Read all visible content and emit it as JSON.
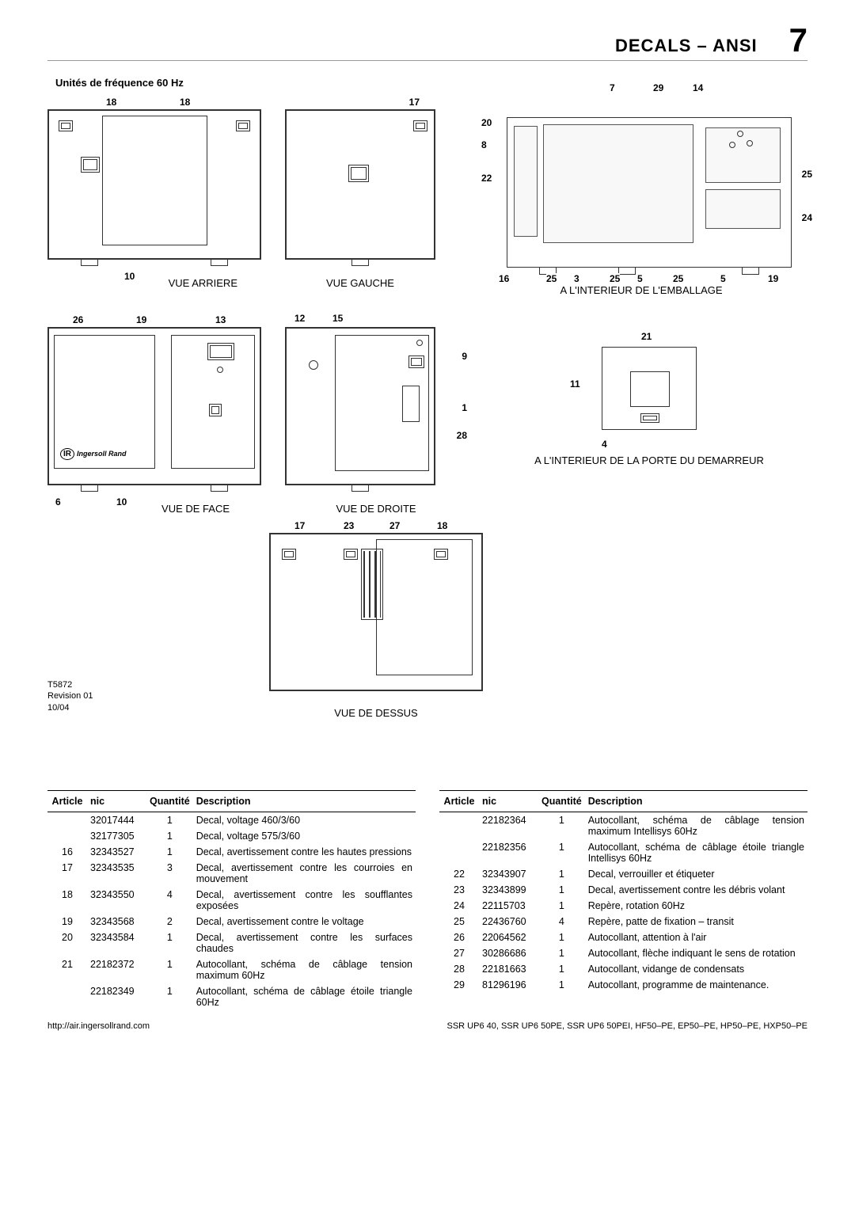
{
  "header": {
    "section_title": "DECALS – ANSI",
    "page_number": "7"
  },
  "subtitle": "Unités de fréquence 60 Hz",
  "diagrams": {
    "rear": {
      "caption": "VUE ARRIERE",
      "callouts": [
        "18",
        "18",
        "10"
      ]
    },
    "left": {
      "caption": "VUE GAUCHE",
      "callouts": [
        "17"
      ]
    },
    "inside_pack": {
      "caption": "A L'INTERIEUR DE L'EMBALLAGE",
      "callouts": [
        "20",
        "8",
        "22",
        "16",
        "25",
        "3",
        "25",
        "5",
        "25",
        "5",
        "19",
        "7",
        "29",
        "14",
        "25",
        "24"
      ]
    },
    "front": {
      "caption": "VUE DE FACE",
      "callouts": [
        "26",
        "19",
        "13",
        "6",
        "10"
      ]
    },
    "right": {
      "caption": "VUE DE DROITE",
      "callouts": [
        "12",
        "15",
        "9",
        "1",
        "28"
      ]
    },
    "starter": {
      "caption": "A L'INTERIEUR DE LA PORTE DU DEMARREUR",
      "callouts": [
        "21",
        "11",
        "4"
      ]
    },
    "top": {
      "caption": "VUE DE DESSUS",
      "callouts": [
        "17",
        "23",
        "27",
        "18"
      ]
    }
  },
  "revision": {
    "code": "T5872",
    "rev": "Revision 01",
    "date": "10/04"
  },
  "logo_text": "Ingersoll Rand",
  "logo_mark": "IR",
  "table": {
    "headers": {
      "article": "Article",
      "nic": "nic",
      "qty": "Quantité",
      "desc": "Description"
    },
    "left_rows": [
      {
        "article": "",
        "nic": "32017444",
        "qty": "1",
        "desc": "Decal, voltage 460/3/60"
      },
      {
        "article": "",
        "nic": "32177305",
        "qty": "1",
        "desc": "Decal, voltage 575/3/60"
      },
      {
        "article": "16",
        "nic": "32343527",
        "qty": "1",
        "desc": "Decal, avertissement contre les hautes pressions"
      },
      {
        "article": "17",
        "nic": "32343535",
        "qty": "3",
        "desc": "Decal, avertissement contre les courroies en mouvement"
      },
      {
        "article": "18",
        "nic": "32343550",
        "qty": "4",
        "desc": "Decal, avertissement contre les soufflantes exposées"
      },
      {
        "article": "19",
        "nic": "32343568",
        "qty": "2",
        "desc": "Decal, avertissement contre le voltage"
      },
      {
        "article": "20",
        "nic": "32343584",
        "qty": "1",
        "desc": "Decal, avertissement contre les surfaces chaudes"
      },
      {
        "article": "21",
        "nic": "22182372",
        "qty": "1",
        "desc": "Autocollant, schéma de câblage tension maximum 60Hz"
      },
      {
        "article": "",
        "nic": "22182349",
        "qty": "1",
        "desc": "Autocollant, schéma de câblage étoile triangle 60Hz"
      }
    ],
    "right_rows": [
      {
        "article": "",
        "nic": "22182364",
        "qty": "1",
        "desc": "Autocollant, schéma de câblage tension maximum Intellisys 60Hz"
      },
      {
        "article": "",
        "nic": "22182356",
        "qty": "1",
        "desc": "Autocollant, schéma de câblage étoile triangle Intellisys 60Hz"
      },
      {
        "article": "22",
        "nic": "32343907",
        "qty": "1",
        "desc": "Decal, verrouiller et étiqueter"
      },
      {
        "article": "23",
        "nic": "32343899",
        "qty": "1",
        "desc": "Decal, avertissement contre les débris volant"
      },
      {
        "article": "24",
        "nic": "22115703",
        "qty": "1",
        "desc": "Repère, rotation 60Hz"
      },
      {
        "article": "25",
        "nic": "22436760",
        "qty": "4",
        "desc": "Repère, patte de fixation – transit"
      },
      {
        "article": "26",
        "nic": "22064562",
        "qty": "1",
        "desc": "Autocollant, attention à l'air"
      },
      {
        "article": "27",
        "nic": "30286686",
        "qty": "1",
        "desc": "Autocollant, flèche indiquant le sens de rotation"
      },
      {
        "article": "28",
        "nic": "22181663",
        "qty": "1",
        "desc": "Autocollant, vidange de condensats"
      },
      {
        "article": "29",
        "nic": "81296196",
        "qty": "1",
        "desc": "Autocollant, programme de maintenance."
      }
    ]
  },
  "footer": {
    "url": "http://air.ingersollrand.com",
    "models": "SSR UP6 40, SSR UP6 50PE, SSR UP6 50PEI, HF50–PE, EP50–PE, HP50–PE, HXP50–PE"
  }
}
